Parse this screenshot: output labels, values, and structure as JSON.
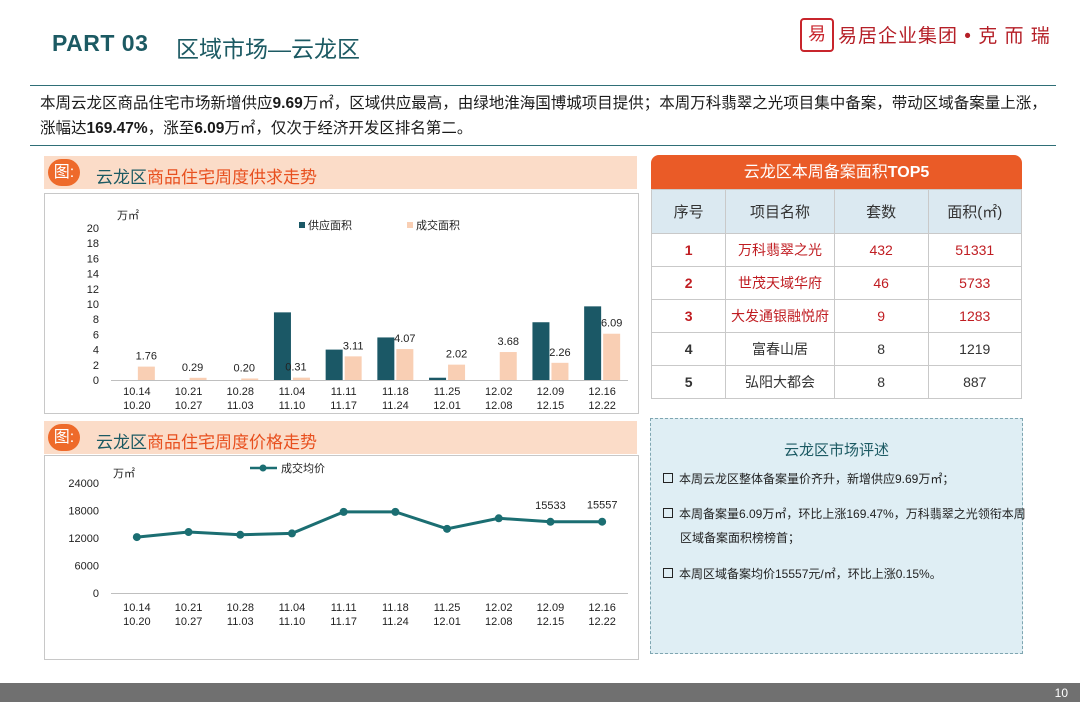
{
  "header": {
    "part": "PART 03",
    "section": "区域市场—云龙区",
    "logo_glyph": "易",
    "logo_text": "易居企业集团 • 克 而 瑞"
  },
  "summary": {
    "p1": "本周云龙区商品住宅市场新增供应",
    "v1": "9.69",
    "p2": "万㎡，区域供应最高，由绿地淮海国博城项目提供；本周万科翡翠之光项目集中备案，带动区域备案量上涨，涨幅达",
    "v2": "169.47%",
    "p3": "，涨至",
    "v3": "6.09",
    "p4": "万㎡，仅次于经济开发区排名第二。"
  },
  "panel1": {
    "tag": "图",
    "title_a": "云龙区",
    "title_b": "商品住宅周度供求走势"
  },
  "panel2": {
    "tag": "图",
    "title_a": "云龙区",
    "title_b": "商品住宅周度价格走势"
  },
  "chart_data": [
    {
      "type": "bar",
      "unit_label": "万㎡",
      "ylim": [
        0,
        20
      ],
      "yticks": [
        0,
        2,
        4,
        6,
        8,
        10,
        12,
        14,
        16,
        18,
        20
      ],
      "categories": [
        [
          "10.14",
          "10.20"
        ],
        [
          "10.21",
          "10.27"
        ],
        [
          "10.28",
          "11.03"
        ],
        [
          "11.04",
          "11.10"
        ],
        [
          "11.11",
          "11.17"
        ],
        [
          "11.18",
          "11.24"
        ],
        [
          "11.25",
          "12.01"
        ],
        [
          "12.02",
          "12.08"
        ],
        [
          "12.09",
          "12.15"
        ],
        [
          "12.16",
          "12.22"
        ]
      ],
      "series": [
        {
          "name": "供应面积",
          "color": "#1b5866",
          "values": [
            0,
            0,
            0,
            8.9,
            4.0,
            5.6,
            0.3,
            0,
            7.6,
            9.69
          ]
        },
        {
          "name": "成交面积",
          "color": "#f9cfb4",
          "values": [
            1.76,
            0.29,
            0.2,
            0.31,
            3.11,
            4.07,
            2.02,
            3.68,
            2.26,
            6.09
          ]
        }
      ],
      "data_labels": [
        "1.76",
        "0.29",
        "0.20",
        "0.31",
        "3.11",
        "4.07",
        "2.02",
        "3.68",
        "2.26",
        "6.09"
      ],
      "legend": "top"
    },
    {
      "type": "line",
      "unit_label": "万㎡",
      "ylim": [
        0,
        24000
      ],
      "yticks": [
        0,
        6000,
        12000,
        18000,
        24000
      ],
      "categories": [
        [
          "10.14",
          "10.20"
        ],
        [
          "10.21",
          "10.27"
        ],
        [
          "10.28",
          "11.03"
        ],
        [
          "11.04",
          "11.10"
        ],
        [
          "11.11",
          "11.17"
        ],
        [
          "11.18",
          "11.24"
        ],
        [
          "11.25",
          "12.01"
        ],
        [
          "12.02",
          "12.08"
        ],
        [
          "12.09",
          "12.15"
        ],
        [
          "12.16",
          "12.22"
        ]
      ],
      "series": [
        {
          "name": "成交均价",
          "color": "#1b6e72",
          "values": [
            12200,
            13300,
            12700,
            13000,
            17700,
            17700,
            14000,
            16300,
            15533,
            15557
          ]
        }
      ],
      "point_labels": [
        null,
        null,
        null,
        null,
        null,
        null,
        null,
        null,
        "15533",
        "15557"
      ],
      "legend": "top"
    }
  ],
  "top5": {
    "title_a": "云龙区",
    "title_b": "本周备案面积",
    "title_c": "TOP5",
    "headers": [
      "序号",
      "项目名称",
      "套数",
      "面积(㎡)"
    ],
    "rows": [
      {
        "rank": "1",
        "name": "万科翡翠之光",
        "units": "432",
        "area": "51331"
      },
      {
        "rank": "2",
        "name": "世茂天域华府",
        "units": "46",
        "area": "5733"
      },
      {
        "rank": "3",
        "name": "大发通银融悦府",
        "units": "9",
        "area": "1283"
      },
      {
        "rank": "4",
        "name": "富春山居",
        "units": "8",
        "area": "1219"
      },
      {
        "rank": "5",
        "name": "弘阳大都会",
        "units": "8",
        "area": "887"
      }
    ]
  },
  "review": {
    "title_a": "云龙区",
    "title_b": "市场评述",
    "items": [
      "本周云龙区整体备案量价齐升，新增供应9.69万㎡；",
      "本周备案量6.09万㎡，环比上涨169.47%，万科翡翠之光领衔本周区域备案面积榜榜首；",
      "本周区域备案均价15557元/㎡，环比上涨0.15%。"
    ]
  },
  "footer": {
    "page": "10"
  }
}
